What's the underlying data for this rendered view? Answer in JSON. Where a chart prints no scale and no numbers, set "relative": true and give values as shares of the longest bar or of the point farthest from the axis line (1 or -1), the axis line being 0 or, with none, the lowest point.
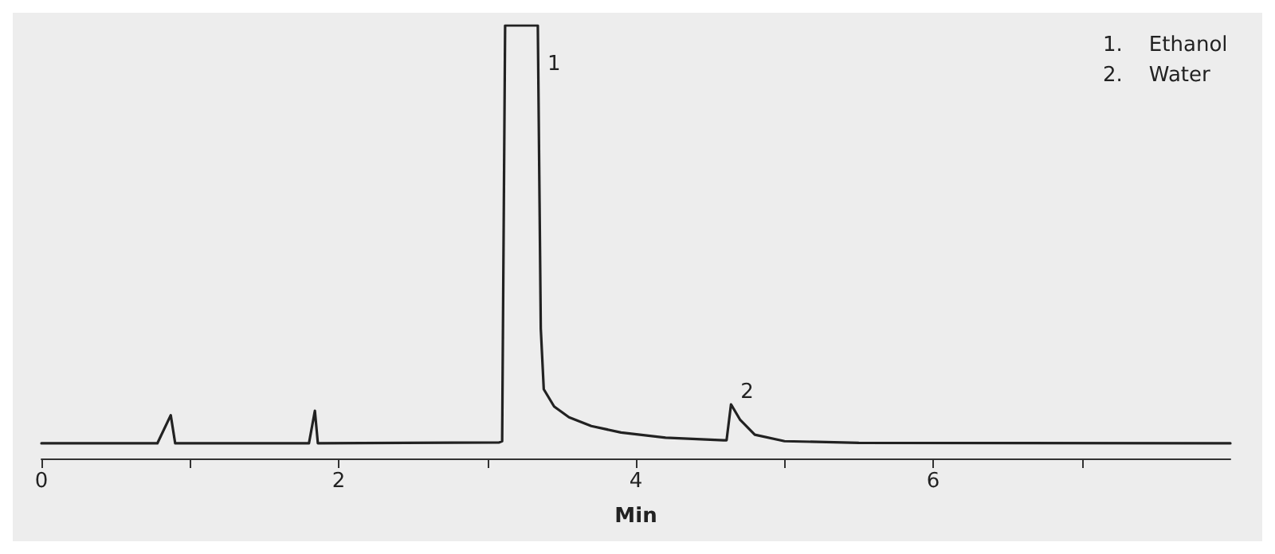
{
  "chart_data": {
    "type": "line",
    "relative": true,
    "xlabel": "Min",
    "x": [
      0,
      0.78,
      0.87,
      0.9,
      1.8,
      1.84,
      1.86,
      3.08,
      3.1,
      3.12,
      3.34,
      3.36,
      3.38,
      3.45,
      3.55,
      3.7,
      3.9,
      4.2,
      4.59,
      4.61,
      4.64,
      4.7,
      4.8,
      5.0,
      5.5,
      8
    ],
    "series": [
      {
        "color": "#222222",
        "values": [
          0.035,
          0.035,
          0.1,
          0.035,
          0.035,
          0.11,
          0.035,
          0.037,
          0.04,
          1,
          1,
          0.3,
          0.16,
          0.12,
          0.095,
          0.075,
          0.06,
          0.048,
          0.042,
          0.042,
          0.125,
          0.09,
          0.055,
          0.04,
          0.036,
          0.035
        ]
      }
    ],
    "xlim": [
      0,
      8
    ],
    "xticks": [
      0,
      {
        "value": 1,
        "label": null
      },
      2,
      {
        "value": 3,
        "label": null
      },
      4,
      {
        "value": 5,
        "label": null
      },
      6,
      {
        "value": 7,
        "label": null
      }
    ],
    "annotations": [
      {
        "text": "1",
        "x": 3.34,
        "y": 1
      },
      {
        "text": "2",
        "x": 4.64,
        "y": 0.125
      },
      "1.    Ethanol",
      "2.    Water"
    ],
    "grid": false,
    "marker": "none",
    "line_style": "solid"
  }
}
